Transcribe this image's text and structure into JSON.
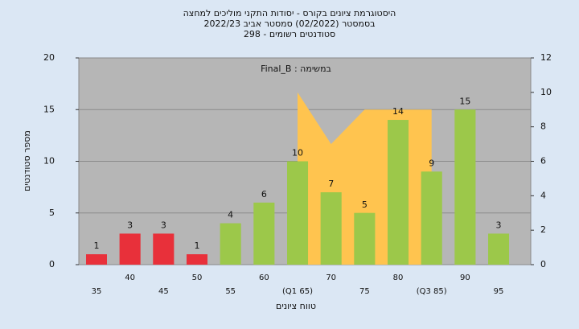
{
  "chart_data": {
    "type": "bar",
    "title": [
      "היסטוגרמת ציונים בקורס - יסודות התקני מוליכים למחצה",
      "בסמסטר  (02/2022)  סמסטר אביב 2022/23",
      "סטודנטים רשומים - 298"
    ],
    "annotation": "Final_B : במשימה",
    "ylabel": "מספר סטודנטים",
    "xlabel": "טווח ציונים",
    "categories": [
      "35",
      "40",
      "45",
      "50",
      "55",
      "60",
      "(Q1 65)",
      "70",
      "75",
      "80",
      "(Q3 85)",
      "90",
      "95"
    ],
    "values": [
      1,
      3,
      3,
      1,
      4,
      6,
      10,
      7,
      5,
      14,
      9,
      15,
      3
    ],
    "bar_colors": [
      "#e8303a",
      "#e8303a",
      "#e8303a",
      "#e8303a",
      "#9cc84a",
      "#9cc84a",
      "#9cc84a",
      "#9cc84a",
      "#9cc84a",
      "#9cc84a",
      "#9cc84a",
      "#9cc84a",
      "#9cc84a"
    ],
    "series": [
      {
        "axis": "y2",
        "color": "#ffc44f",
        "values": [
          null,
          null,
          null,
          null,
          null,
          null,
          10,
          7,
          9,
          9,
          9,
          null,
          null
        ]
      }
    ],
    "ylim": [
      0,
      20
    ],
    "yticks": [
      0,
      5,
      10,
      15,
      20
    ],
    "y2lim": [
      0,
      12
    ],
    "y2ticks": [
      0,
      2,
      4,
      6,
      8,
      10,
      12
    ],
    "grid": true
  }
}
